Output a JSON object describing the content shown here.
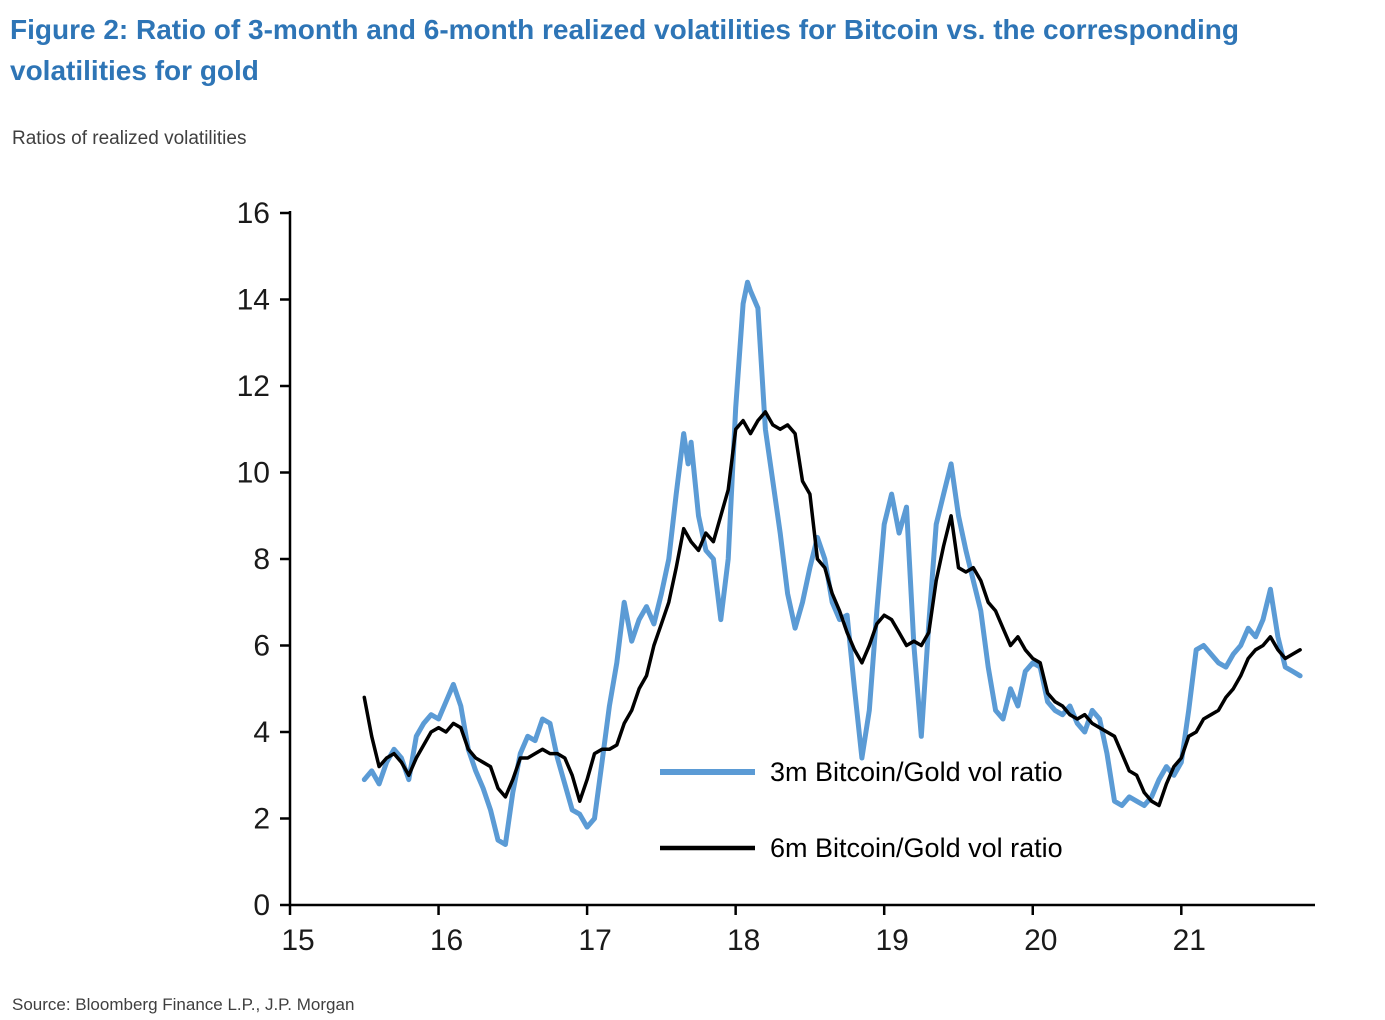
{
  "title": "Figure 2: Ratio of 3-month and 6-month realized volatilities for Bitcoin vs. the corresponding volatilities for gold",
  "subtitle": "Ratios of realized volatilities",
  "source": "Source: Bloomberg Finance L.P., J.P. Morgan",
  "colors": {
    "title_blue": "#2E75B6",
    "blue_line": "#5B9BD5",
    "black_line": "#000000",
    "axis": "#000000",
    "tick_text": "#1a1a1a"
  },
  "chart_data": {
    "type": "line",
    "title": "Ratio of 3-month and 6-month realized volatilities for Bitcoin vs. the corresponding volatilities for gold",
    "xlabel": "",
    "ylabel": "Ratios of realized volatilities",
    "xlim": [
      15,
      21.9
    ],
    "ylim": [
      0,
      16
    ],
    "x_ticks": [
      15,
      16,
      17,
      18,
      19,
      20,
      21
    ],
    "y_ticks": [
      0,
      2,
      4,
      6,
      8,
      10,
      12,
      14,
      16
    ],
    "grid": false,
    "legend_position": "inside-bottom-center",
    "series": [
      {
        "name": "3m Bitcoin/Gold vol ratio",
        "color": "#5B9BD5",
        "stroke_width": 5,
        "points": [
          [
            15.5,
            2.9
          ],
          [
            15.55,
            3.1
          ],
          [
            15.6,
            2.8
          ],
          [
            15.65,
            3.3
          ],
          [
            15.7,
            3.6
          ],
          [
            15.75,
            3.4
          ],
          [
            15.8,
            2.9
          ],
          [
            15.85,
            3.9
          ],
          [
            15.9,
            4.2
          ],
          [
            15.95,
            4.4
          ],
          [
            16.0,
            4.3
          ],
          [
            16.05,
            4.7
          ],
          [
            16.1,
            5.1
          ],
          [
            16.15,
            4.6
          ],
          [
            16.2,
            3.6
          ],
          [
            16.25,
            3.1
          ],
          [
            16.3,
            2.7
          ],
          [
            16.35,
            2.2
          ],
          [
            16.4,
            1.5
          ],
          [
            16.45,
            1.4
          ],
          [
            16.5,
            2.6
          ],
          [
            16.55,
            3.5
          ],
          [
            16.6,
            3.9
          ],
          [
            16.65,
            3.8
          ],
          [
            16.7,
            4.3
          ],
          [
            16.75,
            4.2
          ],
          [
            16.8,
            3.4
          ],
          [
            16.85,
            2.8
          ],
          [
            16.9,
            2.2
          ],
          [
            16.95,
            2.1
          ],
          [
            17.0,
            1.8
          ],
          [
            17.05,
            2.0
          ],
          [
            17.1,
            3.3
          ],
          [
            17.15,
            4.6
          ],
          [
            17.2,
            5.6
          ],
          [
            17.25,
            7.0
          ],
          [
            17.3,
            6.1
          ],
          [
            17.35,
            6.6
          ],
          [
            17.4,
            6.9
          ],
          [
            17.45,
            6.5
          ],
          [
            17.5,
            7.2
          ],
          [
            17.55,
            8.0
          ],
          [
            17.6,
            9.5
          ],
          [
            17.65,
            10.9
          ],
          [
            17.68,
            10.2
          ],
          [
            17.7,
            10.7
          ],
          [
            17.75,
            9.0
          ],
          [
            17.8,
            8.2
          ],
          [
            17.85,
            8.0
          ],
          [
            17.9,
            6.6
          ],
          [
            17.95,
            8.0
          ],
          [
            18.0,
            11.5
          ],
          [
            18.05,
            13.9
          ],
          [
            18.08,
            14.4
          ],
          [
            18.1,
            14.2
          ],
          [
            18.15,
            13.8
          ],
          [
            18.2,
            11.0
          ],
          [
            18.25,
            9.8
          ],
          [
            18.3,
            8.6
          ],
          [
            18.35,
            7.2
          ],
          [
            18.4,
            6.4
          ],
          [
            18.45,
            7.0
          ],
          [
            18.5,
            7.8
          ],
          [
            18.55,
            8.5
          ],
          [
            18.6,
            8.0
          ],
          [
            18.65,
            7.0
          ],
          [
            18.7,
            6.6
          ],
          [
            18.75,
            6.7
          ],
          [
            18.8,
            5.0
          ],
          [
            18.85,
            3.4
          ],
          [
            18.9,
            4.5
          ],
          [
            18.95,
            6.8
          ],
          [
            19.0,
            8.8
          ],
          [
            19.05,
            9.5
          ],
          [
            19.1,
            8.6
          ],
          [
            19.15,
            9.2
          ],
          [
            19.2,
            6.0
          ],
          [
            19.25,
            3.9
          ],
          [
            19.3,
            6.5
          ],
          [
            19.35,
            8.8
          ],
          [
            19.4,
            9.5
          ],
          [
            19.45,
            10.2
          ],
          [
            19.5,
            9.0
          ],
          [
            19.55,
            8.2
          ],
          [
            19.6,
            7.5
          ],
          [
            19.65,
            6.8
          ],
          [
            19.7,
            5.5
          ],
          [
            19.75,
            4.5
          ],
          [
            19.8,
            4.3
          ],
          [
            19.85,
            5.0
          ],
          [
            19.9,
            4.6
          ],
          [
            19.95,
            5.4
          ],
          [
            20.0,
            5.6
          ],
          [
            20.05,
            5.5
          ],
          [
            20.1,
            4.7
          ],
          [
            20.15,
            4.5
          ],
          [
            20.2,
            4.4
          ],
          [
            20.25,
            4.6
          ],
          [
            20.3,
            4.2
          ],
          [
            20.35,
            4.0
          ],
          [
            20.4,
            4.5
          ],
          [
            20.45,
            4.3
          ],
          [
            20.5,
            3.5
          ],
          [
            20.55,
            2.4
          ],
          [
            20.6,
            2.3
          ],
          [
            20.65,
            2.5
          ],
          [
            20.7,
            2.4
          ],
          [
            20.75,
            2.3
          ],
          [
            20.8,
            2.5
          ],
          [
            20.85,
            2.9
          ],
          [
            20.9,
            3.2
          ],
          [
            20.95,
            3.0
          ],
          [
            21.0,
            3.3
          ],
          [
            21.05,
            4.5
          ],
          [
            21.1,
            5.9
          ],
          [
            21.15,
            6.0
          ],
          [
            21.2,
            5.8
          ],
          [
            21.25,
            5.6
          ],
          [
            21.3,
            5.5
          ],
          [
            21.35,
            5.8
          ],
          [
            21.4,
            6.0
          ],
          [
            21.45,
            6.4
          ],
          [
            21.5,
            6.2
          ],
          [
            21.55,
            6.6
          ],
          [
            21.6,
            7.3
          ],
          [
            21.65,
            6.2
          ],
          [
            21.7,
            5.5
          ],
          [
            21.75,
            5.4
          ],
          [
            21.8,
            5.3
          ]
        ]
      },
      {
        "name": "6m Bitcoin/Gold vol ratio",
        "color": "#000000",
        "stroke_width": 3.5,
        "points": [
          [
            15.5,
            4.8
          ],
          [
            15.55,
            3.9
          ],
          [
            15.6,
            3.2
          ],
          [
            15.65,
            3.4
          ],
          [
            15.7,
            3.5
          ],
          [
            15.75,
            3.3
          ],
          [
            15.8,
            3.0
          ],
          [
            15.85,
            3.4
          ],
          [
            15.9,
            3.7
          ],
          [
            15.95,
            4.0
          ],
          [
            16.0,
            4.1
          ],
          [
            16.05,
            4.0
          ],
          [
            16.1,
            4.2
          ],
          [
            16.15,
            4.1
          ],
          [
            16.2,
            3.6
          ],
          [
            16.25,
            3.4
          ],
          [
            16.3,
            3.3
          ],
          [
            16.35,
            3.2
          ],
          [
            16.4,
            2.7
          ],
          [
            16.45,
            2.5
          ],
          [
            16.5,
            2.9
          ],
          [
            16.55,
            3.4
          ],
          [
            16.6,
            3.4
          ],
          [
            16.65,
            3.5
          ],
          [
            16.7,
            3.6
          ],
          [
            16.75,
            3.5
          ],
          [
            16.8,
            3.5
          ],
          [
            16.85,
            3.4
          ],
          [
            16.9,
            3.0
          ],
          [
            16.95,
            2.4
          ],
          [
            17.0,
            2.9
          ],
          [
            17.05,
            3.5
          ],
          [
            17.1,
            3.6
          ],
          [
            17.15,
            3.6
          ],
          [
            17.2,
            3.7
          ],
          [
            17.25,
            4.2
          ],
          [
            17.3,
            4.5
          ],
          [
            17.35,
            5.0
          ],
          [
            17.4,
            5.3
          ],
          [
            17.45,
            6.0
          ],
          [
            17.5,
            6.5
          ],
          [
            17.55,
            7.0
          ],
          [
            17.6,
            7.8
          ],
          [
            17.65,
            8.7
          ],
          [
            17.7,
            8.4
          ],
          [
            17.75,
            8.2
          ],
          [
            17.8,
            8.6
          ],
          [
            17.85,
            8.4
          ],
          [
            17.9,
            9.0
          ],
          [
            17.95,
            9.6
          ],
          [
            18.0,
            11.0
          ],
          [
            18.05,
            11.2
          ],
          [
            18.1,
            10.9
          ],
          [
            18.15,
            11.2
          ],
          [
            18.2,
            11.4
          ],
          [
            18.25,
            11.1
          ],
          [
            18.3,
            11.0
          ],
          [
            18.35,
            11.1
          ],
          [
            18.4,
            10.9
          ],
          [
            18.45,
            9.8
          ],
          [
            18.5,
            9.5
          ],
          [
            18.55,
            8.0
          ],
          [
            18.6,
            7.8
          ],
          [
            18.65,
            7.2
          ],
          [
            18.7,
            6.8
          ],
          [
            18.75,
            6.3
          ],
          [
            18.8,
            5.9
          ],
          [
            18.85,
            5.6
          ],
          [
            18.9,
            6.0
          ],
          [
            18.95,
            6.5
          ],
          [
            19.0,
            6.7
          ],
          [
            19.05,
            6.6
          ],
          [
            19.1,
            6.3
          ],
          [
            19.15,
            6.0
          ],
          [
            19.2,
            6.1
          ],
          [
            19.25,
            6.0
          ],
          [
            19.3,
            6.3
          ],
          [
            19.35,
            7.5
          ],
          [
            19.4,
            8.3
          ],
          [
            19.45,
            9.0
          ],
          [
            19.5,
            7.8
          ],
          [
            19.55,
            7.7
          ],
          [
            19.6,
            7.8
          ],
          [
            19.65,
            7.5
          ],
          [
            19.7,
            7.0
          ],
          [
            19.75,
            6.8
          ],
          [
            19.8,
            6.4
          ],
          [
            19.85,
            6.0
          ],
          [
            19.9,
            6.2
          ],
          [
            19.95,
            5.9
          ],
          [
            20.0,
            5.7
          ],
          [
            20.05,
            5.6
          ],
          [
            20.1,
            4.9
          ],
          [
            20.15,
            4.7
          ],
          [
            20.2,
            4.6
          ],
          [
            20.25,
            4.4
          ],
          [
            20.3,
            4.3
          ],
          [
            20.35,
            4.4
          ],
          [
            20.4,
            4.2
          ],
          [
            20.45,
            4.1
          ],
          [
            20.5,
            4.0
          ],
          [
            20.55,
            3.9
          ],
          [
            20.6,
            3.5
          ],
          [
            20.65,
            3.1
          ],
          [
            20.7,
            3.0
          ],
          [
            20.75,
            2.6
          ],
          [
            20.8,
            2.4
          ],
          [
            20.85,
            2.3
          ],
          [
            20.9,
            2.8
          ],
          [
            20.95,
            3.2
          ],
          [
            21.0,
            3.4
          ],
          [
            21.05,
            3.9
          ],
          [
            21.1,
            4.0
          ],
          [
            21.15,
            4.3
          ],
          [
            21.2,
            4.4
          ],
          [
            21.25,
            4.5
          ],
          [
            21.3,
            4.8
          ],
          [
            21.35,
            5.0
          ],
          [
            21.4,
            5.3
          ],
          [
            21.45,
            5.7
          ],
          [
            21.5,
            5.9
          ],
          [
            21.55,
            6.0
          ],
          [
            21.6,
            6.2
          ],
          [
            21.65,
            5.9
          ],
          [
            21.7,
            5.7
          ],
          [
            21.75,
            5.8
          ],
          [
            21.8,
            5.9
          ]
        ]
      }
    ]
  }
}
